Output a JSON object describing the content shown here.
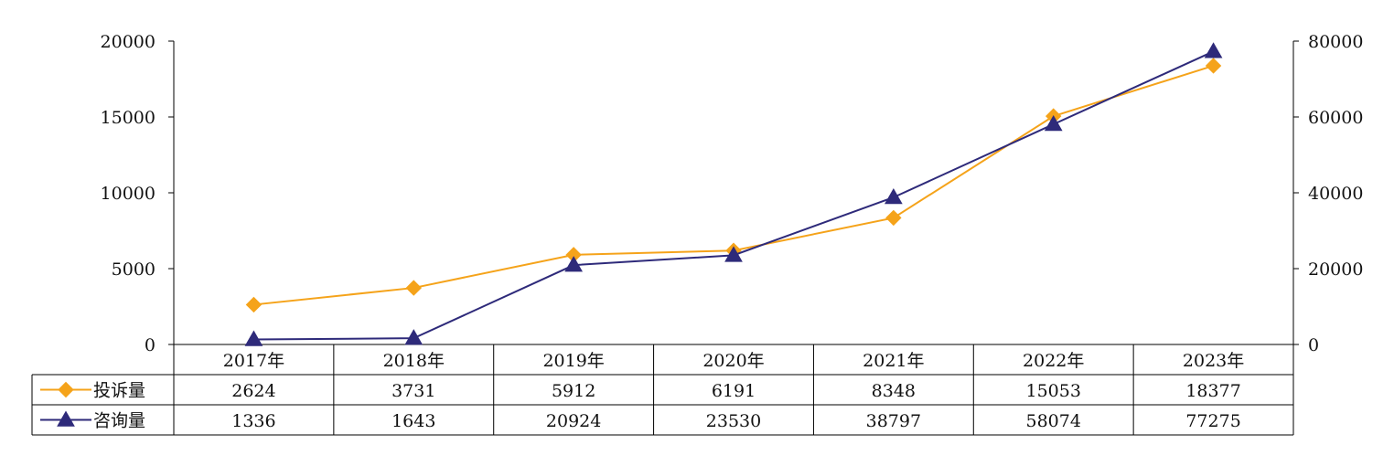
{
  "chart_data": {
    "type": "line",
    "categories": [
      "2017年",
      "2018年",
      "2019年",
      "2020年",
      "2021年",
      "2022年",
      "2023年"
    ],
    "series": [
      {
        "name": "投诉量",
        "axis": "left",
        "color": "#F5A31A",
        "marker": "diamond",
        "values": [
          2624,
          3731,
          5912,
          6191,
          8348,
          15053,
          18377
        ]
      },
      {
        "name": "咨询量",
        "axis": "right",
        "color": "#2E2A7A",
        "marker": "triangle",
        "values": [
          1336,
          1643,
          20924,
          23530,
          38797,
          58074,
          77275
        ]
      }
    ],
    "y_left": {
      "ticks": [
        "0",
        "5000",
        "10000",
        "15000",
        "20000"
      ],
      "ylim": [
        0,
        20000
      ]
    },
    "y_right": {
      "ticks": [
        "0",
        "20000",
        "40000",
        "60000",
        "80000"
      ],
      "ylim": [
        0,
        80000
      ]
    },
    "data_table": true,
    "legend": "in-table",
    "grid": false
  }
}
